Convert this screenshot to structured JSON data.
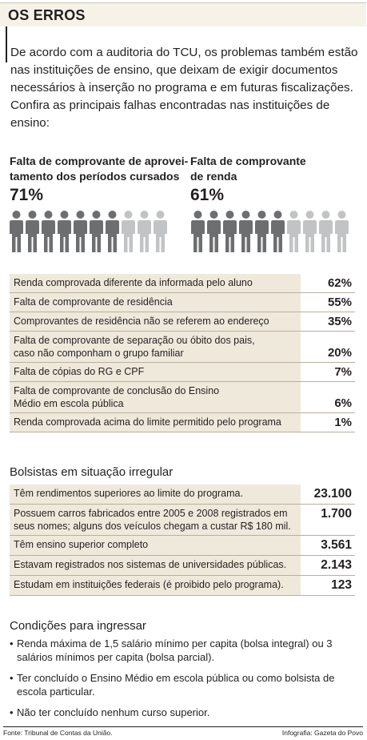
{
  "header": {
    "title": "OS ERROS"
  },
  "intro": "De acordo com a auditoria do TCU, os problemas também estão nas instituições de ensino, que deixam de exigir documentos necessários à inserção no programa e em futuras fiscalizações. Confira as principais falhas encontradas nas instituições de ensino:",
  "stats": [
    {
      "label_line1": "Falta de comprovante de aproveitamento",
      "label_line1_display": "Falta de comprovante de aprovei-",
      "label_line2": "tamento dos períodos cursados",
      "value": "71%",
      "fraction": 0.71,
      "filled": 7,
      "total": 10
    },
    {
      "label_line1_display": "Falta de comprovante",
      "label_line2": "de renda",
      "value": "61%",
      "fraction": 0.61,
      "filled": 6,
      "total": 10
    }
  ],
  "colors": {
    "filled_person": "#6d6e70",
    "empty_person": "#c2c3c4",
    "row_bg": "#efe9dc",
    "header_bg": "#f7f2e8"
  },
  "failures": [
    {
      "lines": [
        "Renda comprovada diferente da informada pelo aluno"
      ],
      "value": "62%"
    },
    {
      "lines": [
        "Falta de comprovante de residência"
      ],
      "value": "55%"
    },
    {
      "lines": [
        "Comprovantes de residência não se referem ao endereço"
      ],
      "value": "35%"
    },
    {
      "lines": [
        "Falta de comprovante de separação ou óbito dos pais,",
        "caso não componham o grupo familiar"
      ],
      "value": "20%"
    },
    {
      "lines": [
        "Falta de cópias do RG e CPF"
      ],
      "value": "7%"
    },
    {
      "lines": [
        "Falta de comprovante de conclusão do Ensino",
        "Médio em escola pública"
      ],
      "value": "6%"
    },
    {
      "lines": [
        "Renda comprovada acima do limite permitido pelo programa"
      ],
      "value": "1%"
    }
  ],
  "irregular": {
    "title": "Bolsistas em situação irregular",
    "rows": [
      {
        "lines": [
          "Têm rendimentos superiores ao limite do programa."
        ],
        "value": "23.100"
      },
      {
        "lines": [
          "Possuem carros fabricados entre 2005 e 2008 registrados em",
          "seus nomes; alguns dos veículos chegam a custar R$ 180 mil."
        ],
        "value": "1.700"
      },
      {
        "lines": [
          "Têm ensino superior completo"
        ],
        "value": "3.561"
      },
      {
        "lines": [
          "Estavam registrados nos sistemas de universidades públicas."
        ],
        "value": "2.143"
      },
      {
        "lines": [
          "Estudam em instituições federais (é proibido pelo programa)."
        ],
        "value": "123"
      }
    ]
  },
  "conditions": {
    "title": "Condições para ingressar",
    "items": [
      {
        "lines": [
          "Renda máxima de 1,5 salário mínimo per capita (bolsa integral) ou 3",
          "salários mínimos per capita (bolsa parcial)."
        ]
      },
      {
        "lines": [
          "Ter concluído o Ensino Médio em escola pública ou como bolsista de",
          "escola particular."
        ]
      },
      {
        "lines": [
          "Não ter concluído nenhum curso superior."
        ]
      }
    ]
  },
  "footer": {
    "source": "Fonte: Tribunal de Contas da União.",
    "credit": "Infografia: Gazeta do Povo"
  }
}
